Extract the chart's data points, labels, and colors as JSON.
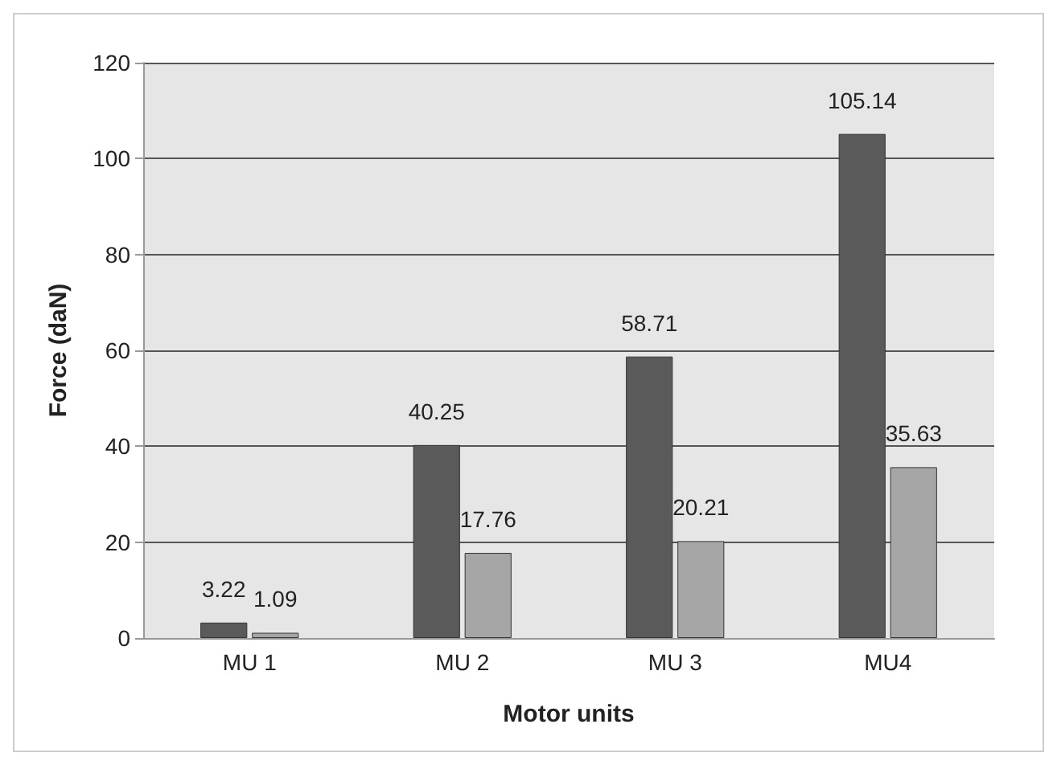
{
  "chart_data": {
    "type": "bar",
    "xlabel": "Motor units",
    "ylabel": "Force (daN)",
    "categories": [
      "MU 1",
      "MU 2",
      "MU 3",
      "MU4"
    ],
    "series": [
      {
        "color": "#5a5a5a",
        "values": [
          3.22,
          40.25,
          58.71,
          105.14
        ]
      },
      {
        "color": "#a6a6a6",
        "values": [
          1.09,
          17.76,
          20.21,
          35.63
        ]
      }
    ],
    "ylim": [
      0,
      120
    ],
    "yticks": [
      0,
      20,
      40,
      60,
      80,
      100,
      120
    ],
    "grid": "y",
    "data_labels": true
  }
}
